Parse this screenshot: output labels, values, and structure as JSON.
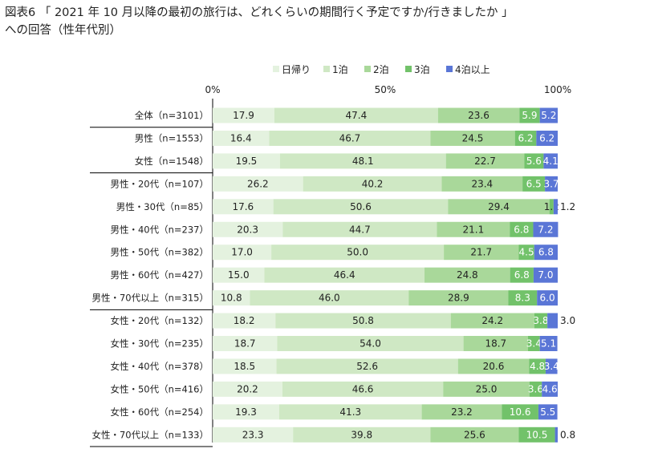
{
  "title": "図表6 「 2021 年 10 月以降の最初の旅行は、どれくらいの期間行く予定ですか/行きましたか 」",
  "subtitle": "への回答（性年代別）",
  "chart_data": {
    "type": "bar",
    "orientation": "horizontal",
    "stacked": "percent",
    "xlim": [
      0,
      100
    ],
    "x_ticks": [
      "0%",
      "50%",
      "100%"
    ],
    "legend_position": "top",
    "series": [
      {
        "name": "日帰り",
        "color": "#e4f2df"
      },
      {
        "name": "1泊",
        "color": "#cfe8c4"
      },
      {
        "name": "2泊",
        "color": "#a9d89a"
      },
      {
        "name": "3泊",
        "color": "#72c26a"
      },
      {
        "name": "4泊以上",
        "color": "#5a76d6"
      }
    ],
    "groups": [
      1,
      3,
      9,
      15
    ],
    "rows": [
      {
        "label": "全体（n=3101）",
        "values": [
          17.9,
          47.4,
          23.6,
          5.9,
          5.2
        ]
      },
      {
        "label": "男性（n=1553）",
        "values": [
          16.4,
          46.7,
          24.5,
          6.2,
          6.2
        ]
      },
      {
        "label": "女性（n=1548）",
        "values": [
          19.5,
          48.1,
          22.7,
          5.6,
          4.1
        ]
      },
      {
        "label": "男性・20代（n=107）",
        "values": [
          26.2,
          40.2,
          23.4,
          6.5,
          3.7
        ]
      },
      {
        "label": "男性・30代（n=85）",
        "values": [
          17.6,
          50.6,
          29.4,
          1.2,
          1.2
        ]
      },
      {
        "label": "男性・40代（n=237）",
        "values": [
          20.3,
          44.7,
          21.1,
          6.8,
          7.2
        ]
      },
      {
        "label": "男性・50代（n=382）",
        "values": [
          17.0,
          50.0,
          21.7,
          4.5,
          6.8
        ]
      },
      {
        "label": "男性・60代（n=427）",
        "values": [
          15.0,
          46.4,
          24.8,
          6.8,
          7.0
        ]
      },
      {
        "label": "男性・70代以上（n=315）",
        "values": [
          10.8,
          46.0,
          28.9,
          8.3,
          6.0
        ]
      },
      {
        "label": "女性・20代（n=132）",
        "values": [
          18.2,
          50.8,
          24.2,
          3.8,
          3.0
        ]
      },
      {
        "label": "女性・30代（n=235）",
        "values": [
          18.7,
          54.0,
          18.7,
          3.4,
          5.1
        ]
      },
      {
        "label": "女性・40代（n=378）",
        "values": [
          18.5,
          52.6,
          20.6,
          4.8,
          3.4
        ]
      },
      {
        "label": "女性・50代（n=416）",
        "values": [
          20.2,
          46.6,
          25.0,
          3.6,
          4.6
        ]
      },
      {
        "label": "女性・60代（n=254）",
        "values": [
          19.3,
          41.3,
          23.2,
          10.6,
          5.5
        ]
      },
      {
        "label": "女性・70代以上（n=133）",
        "values": [
          23.3,
          39.8,
          25.6,
          10.5,
          0.8
        ]
      }
    ]
  }
}
